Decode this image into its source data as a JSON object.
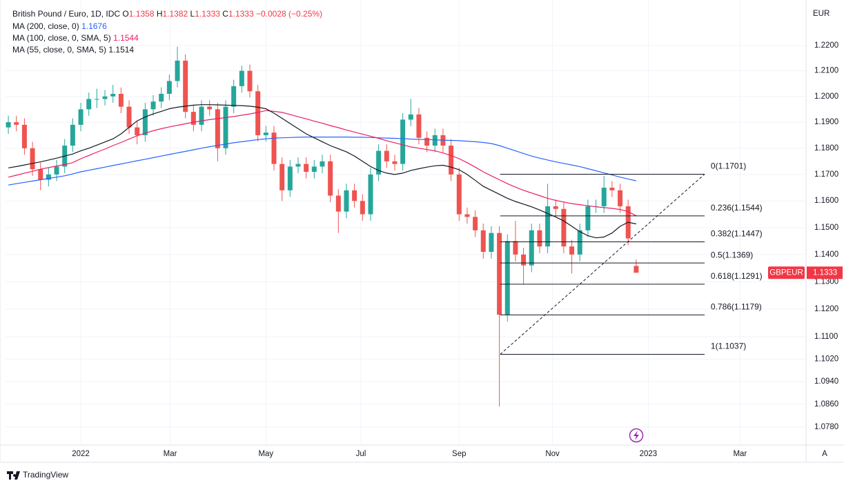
{
  "chart_data": {
    "type": "candlestick",
    "symbol": "British Pound / Euro, 1D, IDC",
    "ohlc_prefixes": [
      "O",
      "H",
      "L",
      "C"
    ],
    "change": {
      "value": -0.0028,
      "label": "−0.0028"
    },
    "change_pct": {
      "value": -0.25,
      "label": "(−0.25%)"
    },
    "currency": "EUR",
    "ticker": "GBPEUR",
    "up_color": "#26a69a",
    "down_color": "#ef5350",
    "log_scale": true,
    "grid": true,
    "ylim": [
      1.0717,
      1.2359
    ],
    "yticks": [
      {
        "value": 1.22,
        "label": "1.2200"
      },
      {
        "value": 1.21,
        "label": "1.2100"
      },
      {
        "value": 1.2,
        "label": "1.2000"
      },
      {
        "value": 1.19,
        "label": "1.1900"
      },
      {
        "value": 1.18,
        "label": "1.1800"
      },
      {
        "value": 1.17,
        "label": "1.1700"
      },
      {
        "value": 1.16,
        "label": "1.1600"
      },
      {
        "value": 1.15,
        "label": "1.1500"
      },
      {
        "value": 1.14,
        "label": "1.1400"
      },
      {
        "value": 1.13,
        "label": "1.1300"
      },
      {
        "value": 1.12,
        "label": "1.1200"
      },
      {
        "value": 1.11,
        "label": "1.1100"
      },
      {
        "value": 1.102,
        "label": "1.1020"
      },
      {
        "value": 1.094,
        "label": "1.0940"
      },
      {
        "value": 1.086,
        "label": "1.0860"
      },
      {
        "value": 1.078,
        "label": "1.0780"
      }
    ],
    "xlim": [
      -0.35,
      99.1
    ],
    "xticks": [
      {
        "value": 9.0,
        "label": "2022"
      },
      {
        "value": 20.1,
        "label": "Mar"
      },
      {
        "value": 32.0,
        "label": "May"
      },
      {
        "value": 43.8,
        "label": "Jul"
      },
      {
        "value": 56.0,
        "label": "Sep"
      },
      {
        "value": 67.6,
        "label": "Nov"
      },
      {
        "value": 79.5,
        "label": "2023"
      },
      {
        "value": 90.9,
        "label": "Mar"
      }
    ],
    "ohlc": [
      [
        1.188,
        1.1925,
        1.1855,
        1.19
      ],
      [
        1.19,
        1.1925,
        1.1865,
        1.189
      ],
      [
        1.189,
        1.1915,
        1.1775,
        1.18
      ],
      [
        1.18,
        1.1825,
        1.1695,
        1.172
      ],
      [
        1.172,
        1.1745,
        1.164,
        1.168
      ],
      [
        1.168,
        1.1725,
        1.1655,
        1.17
      ],
      [
        1.17,
        1.1755,
        1.1675,
        1.173
      ],
      [
        1.173,
        1.1835,
        1.1705,
        1.181
      ],
      [
        1.181,
        1.1915,
        1.1785,
        1.189
      ],
      [
        1.189,
        1.1975,
        1.1865,
        1.195
      ],
      [
        1.195,
        1.2015,
        1.1925,
        1.199
      ],
      [
        1.199,
        1.203,
        1.1955,
        1.199
      ],
      [
        1.199,
        1.2025,
        1.1965,
        1.2
      ],
      [
        1.2,
        1.2045,
        1.1975,
        1.201
      ],
      [
        1.201,
        1.2035,
        1.1935,
        1.196
      ],
      [
        1.196,
        1.1985,
        1.1855,
        1.188
      ],
      [
        1.188,
        1.1905,
        1.1815,
        1.185
      ],
      [
        1.185,
        1.1975,
        1.1825,
        1.195
      ],
      [
        1.195,
        1.2005,
        1.1925,
        1.198
      ],
      [
        1.198,
        1.2035,
        1.1955,
        1.201
      ],
      [
        1.201,
        1.2085,
        1.1985,
        1.206
      ],
      [
        1.206,
        1.2195,
        1.2035,
        1.214
      ],
      [
        1.214,
        1.2165,
        1.1915,
        1.194
      ],
      [
        1.194,
        1.1965,
        1.1865,
        1.189
      ],
      [
        1.189,
        1.1985,
        1.1865,
        1.196
      ],
      [
        1.196,
        1.1985,
        1.1925,
        1.195
      ],
      [
        1.195,
        1.1975,
        1.175,
        1.18
      ],
      [
        1.18,
        1.1985,
        1.1775,
        1.196
      ],
      [
        1.196,
        1.2065,
        1.1935,
        1.204
      ],
      [
        1.204,
        1.212,
        1.2015,
        1.21
      ],
      [
        1.21,
        1.2125,
        1.1995,
        1.202
      ],
      [
        1.202,
        1.2045,
        1.1825,
        1.185
      ],
      [
        1.185,
        1.1885,
        1.1825,
        1.186
      ],
      [
        1.186,
        1.1885,
        1.1715,
        1.174
      ],
      [
        1.174,
        1.1765,
        1.16,
        1.164
      ],
      [
        1.164,
        1.1755,
        1.1615,
        1.173
      ],
      [
        1.173,
        1.1765,
        1.1705,
        1.174
      ],
      [
        1.174,
        1.1765,
        1.1685,
        1.171
      ],
      [
        1.171,
        1.1755,
        1.1685,
        1.173
      ],
      [
        1.173,
        1.1775,
        1.1705,
        1.175
      ],
      [
        1.175,
        1.1775,
        1.1595,
        1.162
      ],
      [
        1.162,
        1.1645,
        1.148,
        1.156
      ],
      [
        1.156,
        1.1665,
        1.1535,
        1.164
      ],
      [
        1.164,
        1.1665,
        1.1575,
        1.16
      ],
      [
        1.16,
        1.1625,
        1.1525,
        1.155
      ],
      [
        1.155,
        1.1725,
        1.1525,
        1.17
      ],
      [
        1.17,
        1.1815,
        1.1675,
        1.179
      ],
      [
        1.179,
        1.1815,
        1.1725,
        1.175
      ],
      [
        1.175,
        1.1775,
        1.1715,
        1.174
      ],
      [
        1.174,
        1.1935,
        1.1715,
        1.191
      ],
      [
        1.191,
        1.199,
        1.1885,
        1.193
      ],
      [
        1.193,
        1.1955,
        1.1815,
        1.184
      ],
      [
        1.184,
        1.1865,
        1.1785,
        1.181
      ],
      [
        1.181,
        1.1875,
        1.1785,
        1.185
      ],
      [
        1.185,
        1.1875,
        1.1785,
        1.181
      ],
      [
        1.181,
        1.1835,
        1.1675,
        1.17
      ],
      [
        1.17,
        1.1725,
        1.1525,
        1.155
      ],
      [
        1.155,
        1.1575,
        1.1515,
        1.154
      ],
      [
        1.154,
        1.1565,
        1.1465,
        1.149
      ],
      [
        1.149,
        1.1515,
        1.1385,
        1.141
      ],
      [
        1.141,
        1.1505,
        1.1385,
        1.148
      ],
      [
        1.148,
        1.1505,
        1.0852,
        1.118
      ],
      [
        1.118,
        1.1475,
        1.1155,
        1.145
      ],
      [
        1.145,
        1.1525,
        1.1375,
        1.14
      ],
      [
        1.14,
        1.1425,
        1.129,
        1.136
      ],
      [
        1.136,
        1.1515,
        1.1335,
        1.149
      ],
      [
        1.149,
        1.1515,
        1.1405,
        1.143
      ],
      [
        1.143,
        1.1665,
        1.1405,
        1.158
      ],
      [
        1.158,
        1.1605,
        1.1545,
        1.157
      ],
      [
        1.157,
        1.1595,
        1.1405,
        1.143
      ],
      [
        1.143,
        1.1455,
        1.133,
        1.14
      ],
      [
        1.14,
        1.1515,
        1.1375,
        1.149
      ],
      [
        1.149,
        1.1605,
        1.1465,
        1.158
      ],
      [
        1.158,
        1.1605,
        1.1555,
        1.158
      ],
      [
        1.158,
        1.1695,
        1.1555,
        1.165
      ],
      [
        1.165,
        1.1675,
        1.1615,
        1.164
      ],
      [
        1.164,
        1.1665,
        1.1555,
        1.158
      ],
      [
        1.158,
        1.1605,
        1.1435,
        1.146
      ],
      [
        1.1358,
        1.1382,
        1.1333,
        1.1333
      ]
    ],
    "series": [
      {
        "name": "MA (200, close, 0)",
        "color": "#2962ff",
        "values": [
          1.166,
          1.1665,
          1.167,
          1.1675,
          1.168,
          1.1685,
          1.169,
          1.1695,
          1.1702,
          1.171,
          1.1716,
          1.1722,
          1.1728,
          1.1734,
          1.174,
          1.1746,
          1.1752,
          1.1758,
          1.1764,
          1.177,
          1.1776,
          1.1782,
          1.1788,
          1.1794,
          1.18,
          1.1806,
          1.1811,
          1.1816,
          1.1821,
          1.1825,
          1.1829,
          1.1833,
          1.1836,
          1.1839,
          1.184,
          1.1841,
          1.1842,
          1.1843,
          1.1843,
          1.1843,
          1.1843,
          1.1843,
          1.1843,
          1.1842,
          1.1842,
          1.1841,
          1.184,
          1.1839,
          1.1838,
          1.1837,
          1.1835,
          1.1834,
          1.1833,
          1.1832,
          1.1831,
          1.183,
          1.1829,
          1.1827,
          1.1825,
          1.1822,
          1.1818,
          1.181,
          1.18,
          1.179,
          1.178,
          1.177,
          1.1762,
          1.1755,
          1.1748,
          1.1742,
          1.1736,
          1.173,
          1.1722,
          1.1714,
          1.1706,
          1.1698,
          1.169,
          1.1683,
          1.1676
        ]
      },
      {
        "name": "MA (100, close, 0, SMA, 5)",
        "color": "#e91e63",
        "values": [
          1.169,
          1.1697,
          1.1705,
          1.1712,
          1.172,
          1.1726,
          1.1732,
          1.1738,
          1.1745,
          1.176,
          1.1772,
          1.1785,
          1.1797,
          1.181,
          1.1822,
          1.1835,
          1.1848,
          1.1858,
          1.1867,
          1.1875,
          1.1882,
          1.1888,
          1.1894,
          1.19,
          1.1905,
          1.191,
          1.1914,
          1.1918,
          1.1922,
          1.1927,
          1.1932,
          1.1938,
          1.1945,
          1.1942,
          1.1938,
          1.193,
          1.1921,
          1.1913,
          1.1904,
          1.1896,
          1.1887,
          1.1879,
          1.187,
          1.1862,
          1.1854,
          1.1846,
          1.1838,
          1.1829,
          1.1821,
          1.1813,
          1.1805,
          1.18,
          1.1795,
          1.179,
          1.1782,
          1.1772,
          1.176,
          1.1745,
          1.1728,
          1.171,
          1.1695,
          1.168,
          1.1665,
          1.1652,
          1.164,
          1.163,
          1.162,
          1.161,
          1.1602,
          1.1596,
          1.159,
          1.1586,
          1.1582,
          1.1578,
          1.1575,
          1.1572,
          1.1568,
          1.156,
          1.1544
        ]
      },
      {
        "name": "MA (55, close, 0, SMA, 5)",
        "color": "#131722",
        "values": [
          1.1725,
          1.173,
          1.1736,
          1.1742,
          1.1748,
          1.1755,
          1.1762,
          1.177,
          1.1778,
          1.179,
          1.18,
          1.1812,
          1.1824,
          1.1836,
          1.1855,
          1.188,
          1.1905,
          1.192,
          1.1932,
          1.1942,
          1.1952,
          1.1958,
          1.1962,
          1.1966,
          1.1968,
          1.1968,
          1.1967,
          1.1966,
          1.1965,
          1.1964,
          1.1962,
          1.1958,
          1.1952,
          1.1935,
          1.1915,
          1.1895,
          1.1875,
          1.1855,
          1.184,
          1.1825,
          1.181,
          1.1798,
          1.1786,
          1.177,
          1.175,
          1.173,
          1.1715,
          1.1705,
          1.17,
          1.1705,
          1.1715,
          1.1722,
          1.1728,
          1.1733,
          1.1735,
          1.1728,
          1.1718,
          1.17,
          1.1678,
          1.1655,
          1.164,
          1.1625,
          1.161,
          1.1598,
          1.1588,
          1.1578,
          1.1566,
          1.1553,
          1.154,
          1.1525,
          1.1505,
          1.1485,
          1.147,
          1.1462,
          1.1465,
          1.148,
          1.1505,
          1.152,
          1.1514
        ]
      }
    ],
    "fib": {
      "xrange": [
        61.1,
        86.5
      ],
      "levels": [
        {
          "value": 1.1701,
          "label": "0(1.1701)"
        },
        {
          "value": 1.1544,
          "label": "0.236(1.1544)"
        },
        {
          "value": 1.1447,
          "label": "0.382(1.1447)"
        },
        {
          "value": 1.1369,
          "label": "0.5(1.1369)"
        },
        {
          "value": 1.1291,
          "label": "0.618(1.1291)"
        },
        {
          "value": 1.1179,
          "label": "0.786(1.1179)"
        },
        {
          "value": 1.1037,
          "label": "1(1.1037)"
        }
      ]
    }
  },
  "footer": {
    "brand": "TradingView",
    "scale_button": "A"
  }
}
